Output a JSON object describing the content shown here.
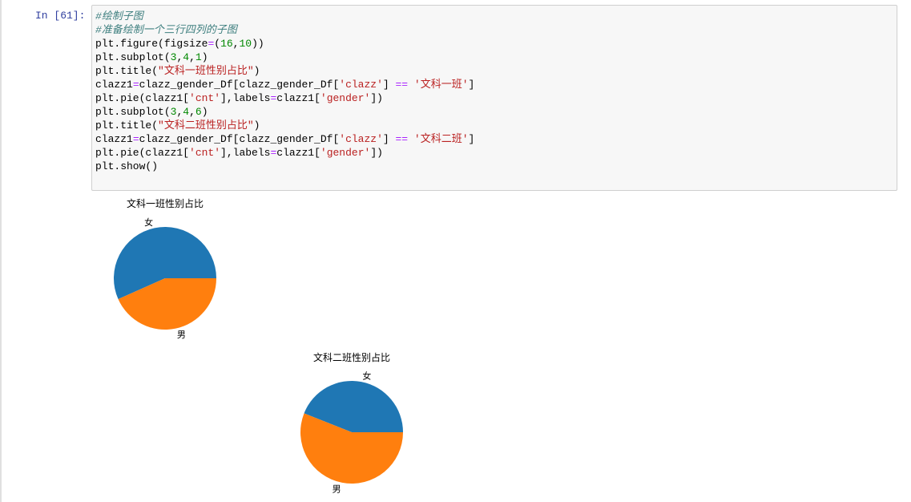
{
  "cell": {
    "prompt": "In [61]:",
    "code": [
      "#绘制子图",
      "#准备绘制一个三行四列的子图",
      "plt.figure(figsize=(16,10))",
      "plt.subplot(3,4,1)",
      "plt.title(\"文科一班性别占比\")",
      "clazz1=clazz_gender_Df[clazz_gender_Df['clazz'] == '文科一班']",
      "plt.pie(clazz1['cnt'],labels=clazz1['gender'])",
      "plt.subplot(3,4,6)",
      "plt.title(\"文科二班性别占比\")",
      "clazz1=clazz_gender_Df[clazz_gender_Df['clazz'] == '文科二班']",
      "plt.pie(clazz1['cnt'],labels=clazz1['gender'])",
      "plt.show()"
    ]
  },
  "chart_data": [
    {
      "type": "pie",
      "title": "文科一班性别占比",
      "categories": [
        "女",
        "男"
      ],
      "values": [
        17,
        13
      ],
      "colors": [
        "#1f77b4",
        "#ff7f0e"
      ]
    },
    {
      "type": "pie",
      "title": "文科二班性别占比",
      "categories": [
        "女",
        "男"
      ],
      "values": [
        11,
        14
      ],
      "colors": [
        "#1f77b4",
        "#ff7f0e"
      ]
    }
  ]
}
